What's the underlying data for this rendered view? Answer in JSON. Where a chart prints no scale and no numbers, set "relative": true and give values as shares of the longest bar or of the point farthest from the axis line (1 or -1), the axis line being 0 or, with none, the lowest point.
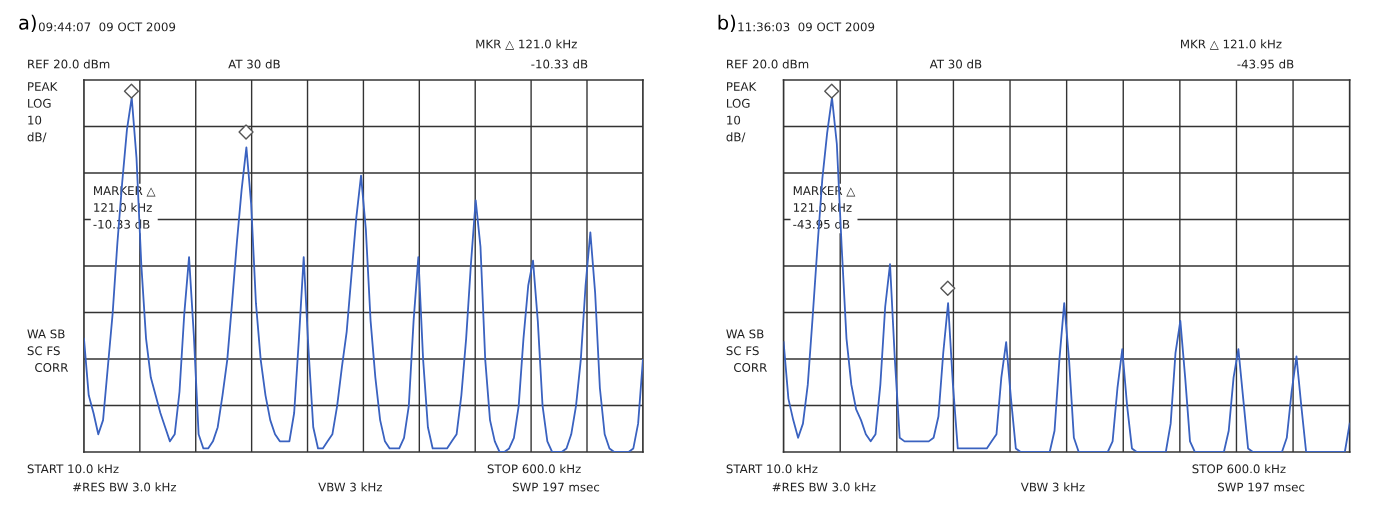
{
  "chart_data": [
    {
      "type": "line",
      "title": "a)",
      "relative": true,
      "grid": true,
      "legend": false,
      "marker": "none",
      "line_style": "solid",
      "categories": [
        null,
        null,
        null,
        null,
        null,
        null,
        null,
        null,
        null,
        null,
        null,
        null,
        null,
        null,
        null,
        null,
        null,
        null,
        null,
        null,
        null,
        null,
        null,
        null,
        null,
        null,
        null,
        null,
        null,
        null,
        null,
        null,
        null,
        null,
        null,
        null,
        null,
        null,
        null,
        null,
        null,
        null,
        null,
        null,
        null,
        null,
        null,
        null,
        null,
        null,
        null,
        null,
        null,
        null,
        null,
        null,
        null,
        null,
        null,
        null,
        null,
        null,
        null,
        null,
        null,
        null,
        null,
        null,
        null,
        null,
        null,
        null,
        null,
        null,
        null,
        null,
        null,
        null,
        null,
        null,
        null,
        null,
        null,
        null,
        null,
        null,
        null,
        null,
        null,
        null,
        null,
        null,
        null,
        null,
        null,
        null,
        null,
        null,
        null,
        null,
        null,
        null,
        null,
        null,
        null,
        null,
        null,
        null,
        null,
        null,
        null,
        null,
        null,
        null,
        null,
        null,
        null,
        null
      ],
      "series": [
        {
          "color": "#3a62c0",
          "values": [
            0.32,
            0.16,
            0.11,
            0.05,
            0.09,
            0.24,
            0.39,
            0.59,
            0.76,
            0.91,
            1,
            0.83,
            0.53,
            0.32,
            0.21,
            0.16,
            0.11,
            0.07,
            0.03,
            0.05,
            0.17,
            0.39,
            0.55,
            0.33,
            0.05,
            0.01,
            0.01,
            0.03,
            0.07,
            0.16,
            0.26,
            0.42,
            0.59,
            0.74,
            0.86,
            0.7,
            0.42,
            0.26,
            0.16,
            0.09,
            0.05,
            0.03,
            0.03,
            0.03,
            0.11,
            0.32,
            0.55,
            0.29,
            0.07,
            0.01,
            0.01,
            0.03,
            0.05,
            0.13,
            0.24,
            0.34,
            0.5,
            0.66,
            0.78,
            0.63,
            0.37,
            0.21,
            0.09,
            0.03,
            0.01,
            0.01,
            0.01,
            0.04,
            0.13,
            0.37,
            0.55,
            0.26,
            0.07,
            0.01,
            0.01,
            0.01,
            0.01,
            0.03,
            0.05,
            0.16,
            0.32,
            0.53,
            0.71,
            0.58,
            0.26,
            0.09,
            0.03,
            0,
            0,
            0.01,
            0.04,
            0.13,
            0.32,
            0.47,
            0.54,
            0.37,
            0.13,
            0.03,
            0,
            0,
            0,
            0.01,
            0.05,
            0.13,
            0.26,
            0.47,
            0.62,
            0.45,
            0.18,
            0.05,
            0.01,
            0,
            0,
            0,
            0,
            0.01,
            0.08,
            0.26
          ]
        }
      ],
      "annotations": [
        "09:44:07  09 OCT 2009",
        "MKR △ 121.0 kHz",
        "REF 20.0 dBm",
        "AT 30 dB",
        "-10.33 dB",
        "PEAK\nLOG\n10\ndB/",
        "MARKER △\n121.0 kHz\n-10.33 dB",
        "WA SB\nSC FS\n  CORR",
        "START 10.0 kHz",
        "#RES BW 3.0 kHz",
        "VBW 3 kHz",
        "STOP 600.0 kHz",
        "SWP 197 msec"
      ]
    },
    {
      "type": "line",
      "title": "b)",
      "relative": true,
      "grid": true,
      "legend": false,
      "marker": "none",
      "line_style": "solid",
      "categories": [
        null,
        null,
        null,
        null,
        null,
        null,
        null,
        null,
        null,
        null,
        null,
        null,
        null,
        null,
        null,
        null,
        null,
        null,
        null,
        null,
        null,
        null,
        null,
        null,
        null,
        null,
        null,
        null,
        null,
        null,
        null,
        null,
        null,
        null,
        null,
        null,
        null,
        null,
        null,
        null,
        null,
        null,
        null,
        null,
        null,
        null,
        null,
        null,
        null,
        null,
        null,
        null,
        null,
        null,
        null,
        null,
        null,
        null,
        null,
        null,
        null,
        null,
        null,
        null,
        null,
        null,
        null,
        null,
        null,
        null,
        null,
        null,
        null,
        null,
        null,
        null,
        null,
        null,
        null,
        null,
        null,
        null,
        null,
        null,
        null,
        null,
        null,
        null,
        null,
        null,
        null,
        null,
        null,
        null,
        null,
        null,
        null,
        null,
        null,
        null,
        null,
        null,
        null,
        null,
        null,
        null,
        null,
        null,
        null,
        null,
        null,
        null,
        null,
        null,
        null,
        null,
        null,
        null
      ],
      "series": [
        {
          "color": "#3a62c0",
          "values": [
            0.31,
            0.15,
            0.09,
            0.04,
            0.08,
            0.19,
            0.38,
            0.58,
            0.77,
            0.9,
            1,
            0.87,
            0.58,
            0.32,
            0.19,
            0.12,
            0.09,
            0.05,
            0.03,
            0.05,
            0.19,
            0.41,
            0.53,
            0.26,
            0.04,
            0.03,
            0.03,
            0.03,
            0.03,
            0.03,
            0.03,
            0.04,
            0.1,
            0.28,
            0.42,
            0.19,
            0.01,
            0.01,
            0.01,
            0.01,
            0.01,
            0.01,
            0.01,
            0.03,
            0.05,
            0.21,
            0.31,
            0.15,
            0.01,
            0,
            0,
            0,
            0,
            0,
            0,
            0,
            0.06,
            0.26,
            0.42,
            0.26,
            0.04,
            0,
            0,
            0,
            0,
            0,
            0,
            0,
            0.03,
            0.18,
            0.29,
            0.13,
            0.01,
            0,
            0,
            0,
            0,
            0,
            0,
            0,
            0.08,
            0.28,
            0.37,
            0.21,
            0.03,
            0,
            0,
            0,
            0,
            0,
            0,
            0,
            0.06,
            0.21,
            0.29,
            0.15,
            0.01,
            0,
            0,
            0,
            0,
            0,
            0,
            0,
            0.04,
            0.17,
            0.27,
            0.13,
            0,
            0,
            0,
            0,
            0,
            0,
            0,
            0,
            0,
            0.08
          ]
        }
      ],
      "annotations": [
        "11:36:03  09 OCT 2009",
        "MKR △ 121.0 kHz",
        "REF 20.0 dBm",
        "AT 30 dB",
        "-43.95 dB",
        "PEAK\nLOG\n10\ndB/",
        "MARKER △\n121.0 kHz\n-43.95 dB",
        "WA SB\nSC FS\n  CORR",
        "START 10.0 kHz",
        "#RES BW 3.0 kHz",
        "VBW 3 kHz",
        "STOP 600.0 kHz",
        "SWP 197 msec"
      ]
    }
  ]
}
